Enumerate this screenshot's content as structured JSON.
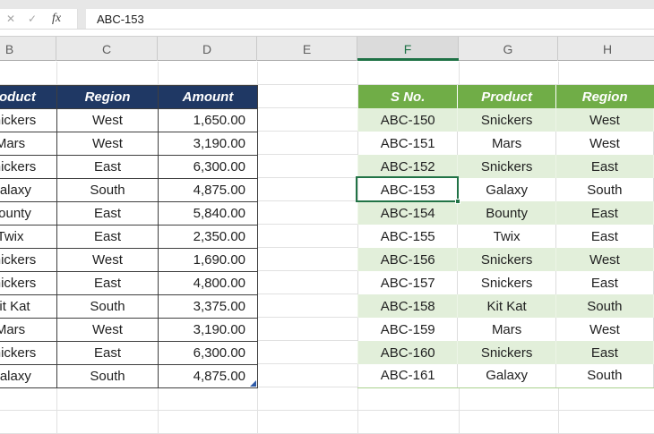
{
  "formula_bar": {
    "cancel_label": "✕",
    "enter_label": "✓",
    "fx_label": "fx",
    "value": "ABC-153"
  },
  "columns": {
    "letters": [
      "B",
      "C",
      "D",
      "E",
      "F",
      "G",
      "H"
    ],
    "selected": "F"
  },
  "sales_table": {
    "headers": [
      "Product",
      "Region",
      "Amount"
    ],
    "rows": [
      [
        "Snickers",
        "West",
        "1,650.00"
      ],
      [
        "Mars",
        "West",
        "3,190.00"
      ],
      [
        "Snickers",
        "East",
        "6,300.00"
      ],
      [
        "Galaxy",
        "South",
        "4,875.00"
      ],
      [
        "Bounty",
        "East",
        "5,840.00"
      ],
      [
        "Twix",
        "East",
        "2,350.00"
      ],
      [
        "Snickers",
        "West",
        "1,690.00"
      ],
      [
        "Snickers",
        "East",
        "4,800.00"
      ],
      [
        "Kit Kat",
        "South",
        "3,375.00"
      ],
      [
        "Mars",
        "West",
        "3,190.00"
      ],
      [
        "Snickers",
        "East",
        "6,300.00"
      ],
      [
        "Galaxy",
        "South",
        "4,875.00"
      ]
    ]
  },
  "lookup_table": {
    "headers": [
      "S No.",
      "Product",
      "Region"
    ],
    "rows": [
      [
        "ABC-150",
        "Snickers",
        "West"
      ],
      [
        "ABC-151",
        "Mars",
        "West"
      ],
      [
        "ABC-152",
        "Snickers",
        "East"
      ],
      [
        "ABC-153",
        "Galaxy",
        "South"
      ],
      [
        "ABC-154",
        "Bounty",
        "East"
      ],
      [
        "ABC-155",
        "Twix",
        "East"
      ],
      [
        "ABC-156",
        "Snickers",
        "West"
      ],
      [
        "ABC-157",
        "Snickers",
        "East"
      ],
      [
        "ABC-158",
        "Kit Kat",
        "South"
      ],
      [
        "ABC-159",
        "Mars",
        "West"
      ],
      [
        "ABC-160",
        "Snickers",
        "East"
      ],
      [
        "ABC-161",
        "Galaxy",
        "South"
      ]
    ]
  },
  "active_cell": {
    "value": "ABC-153"
  },
  "colors": {
    "navy_header": "#1F3864",
    "green_header": "#70AD47",
    "band_green": "#E2EFDA",
    "selection_green": "#217346",
    "resize_handle_blue": "#2E5AA8"
  }
}
